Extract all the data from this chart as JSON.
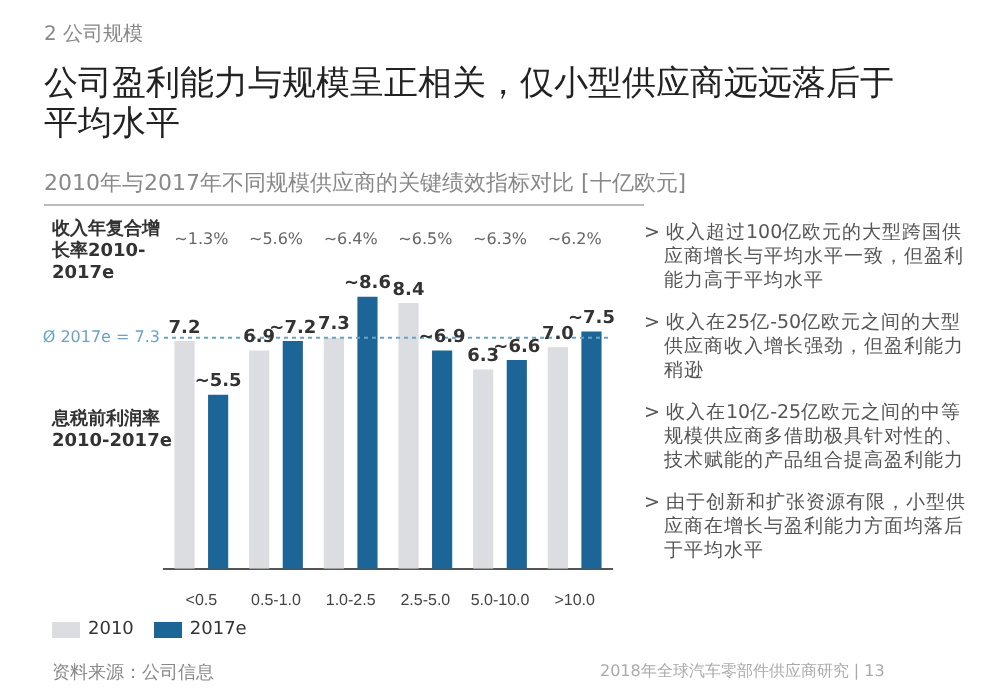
{
  "chart_data": {
    "type": "bar",
    "title": "公司盈利能力与规模呈正相关，仅小型供应商远远落后于平均水平",
    "subtitle": "2010年与2017年不同规模供应商的关键绩效指标对比 [十亿欧元]",
    "ylabel": "息税前利润率2010-2017e",
    "categories": [
      "<0.5",
      "0.5-1.0",
      "1.0-2.5",
      "2.5-5.0",
      "5.0-10.0",
      ">10.0"
    ],
    "series": [
      {
        "name": "2010",
        "color": "#dcdde0",
        "values": [
          7.2,
          6.9,
          7.3,
          8.4,
          6.3,
          7.0
        ],
        "value_labels": [
          "7.2",
          "6.9",
          "7.3",
          "8.4",
          "6.3",
          "7.0"
        ]
      },
      {
        "name": "2017e",
        "color": "#1c6697",
        "values": [
          5.5,
          7.2,
          8.6,
          6.9,
          6.6,
          7.5
        ],
        "value_labels": [
          "~5.5",
          "~7.2",
          "~8.6",
          "~6.9",
          "~6.6",
          "~7.5"
        ]
      }
    ],
    "ref_lines": [
      {
        "axis": "y",
        "value": 7.3,
        "label": "Ø 2017e = 7.3",
        "color": "#6aa3c6",
        "line_style": "dotted"
      }
    ],
    "annotations": [
      "2 公司规模",
      "收入年复合增长率2010-2017e",
      "~1.3%",
      "~5.6%",
      "~6.4%",
      "~6.5%",
      "~6.3%",
      "~6.2%",
      "> 收入超过100亿欧元的大型跨国供应商增长与平均水平一致，但盈利能力高于平均水平",
      "> 收入在25亿-50亿欧元之间的大型供应商收入增长强劲，但盈利能力稍逊",
      "> 收入在10亿-25亿欧元之间的中等规模供应商多借助极具针对性的、技术赋能的产品组合提高盈利能力",
      "> 由于创新和扩张资源有限，小型供应商在增长与盈利能力方面均落后于平均水平",
      "资料来源：公司信息",
      "2018年全球汽车零部件供应商研究 | 13"
    ],
    "legend": "bottom left",
    "grid": false
  }
}
